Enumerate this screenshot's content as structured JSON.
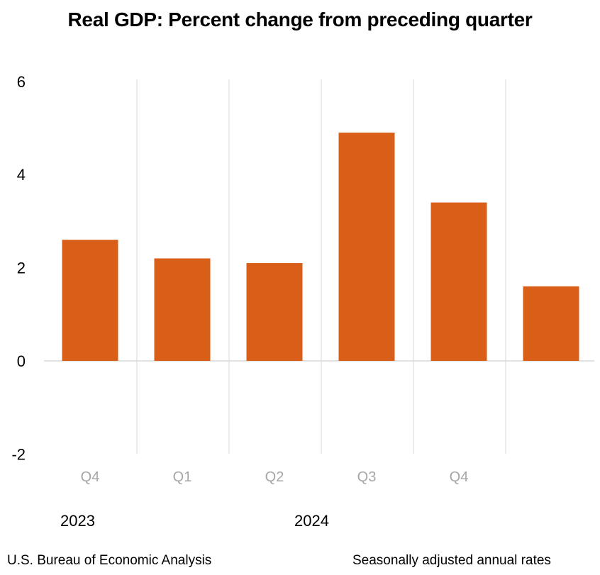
{
  "chart_data": {
    "type": "bar",
    "title": "Real GDP:  Percent change from preceding quarter",
    "xlabel": "",
    "ylabel": "",
    "categories": [
      "Q4",
      "Q1",
      "Q2",
      "Q3",
      "Q4",
      ""
    ],
    "years": [
      {
        "label": "2023",
        "start_index": 0
      },
      {
        "label": "2024",
        "start_index": 1
      }
    ],
    "values": [
      2.6,
      2.2,
      2.1,
      4.9,
      3.4,
      1.6
    ],
    "ylim": [
      -2,
      6
    ],
    "yticks": [
      -2,
      0,
      2,
      4,
      6
    ],
    "bar_color": "#d95f18",
    "grid": "vertical separators between categories",
    "legend": "none",
    "source": "U.S. Bureau of Economic Analysis",
    "note": "Seasonally adjusted annual rates"
  }
}
